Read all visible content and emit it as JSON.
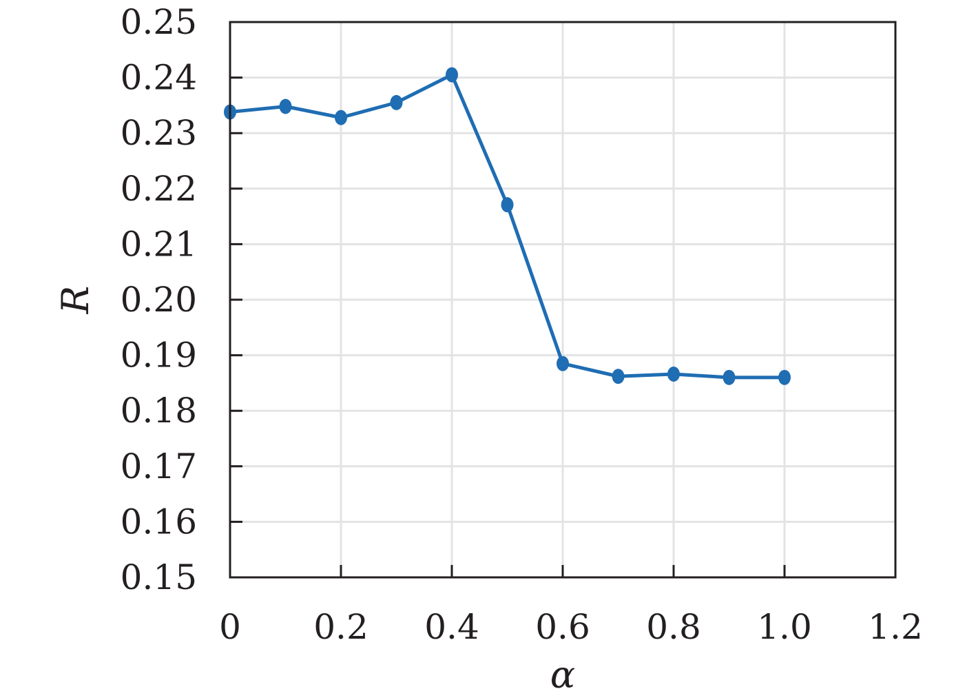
{
  "chart_data": {
    "type": "line",
    "xlabel": "α",
    "ylabel": "R",
    "xlim": [
      0,
      1.2
    ],
    "ylim": [
      0.15,
      0.25
    ],
    "x_ticks": [
      0,
      0.2,
      0.4,
      0.6,
      0.8,
      1.0,
      1.2
    ],
    "x_tick_labels": [
      "0",
      "0.2",
      "0.4",
      "0.6",
      "0.8",
      "1.0",
      "1.2"
    ],
    "y_ticks": [
      0.15,
      0.16,
      0.17,
      0.18,
      0.19,
      0.2,
      0.21,
      0.22,
      0.23,
      0.24,
      0.25
    ],
    "y_tick_labels": [
      "0.15",
      "0.16",
      "0.17",
      "0.18",
      "0.19",
      "0.20",
      "0.21",
      "0.22",
      "0.23",
      "0.24",
      "0.25"
    ],
    "grid": true,
    "series": [
      {
        "color": "#1f6db3",
        "marker": "circle",
        "x": [
          0,
          0.1,
          0.2,
          0.3,
          0.4,
          0.5,
          0.6,
          0.7,
          0.8,
          0.9,
          1.0
        ],
        "y": [
          0.2338,
          0.2348,
          0.2328,
          0.2355,
          0.2405,
          0.2171,
          0.1885,
          0.1862,
          0.1866,
          0.186,
          0.186
        ]
      }
    ]
  }
}
